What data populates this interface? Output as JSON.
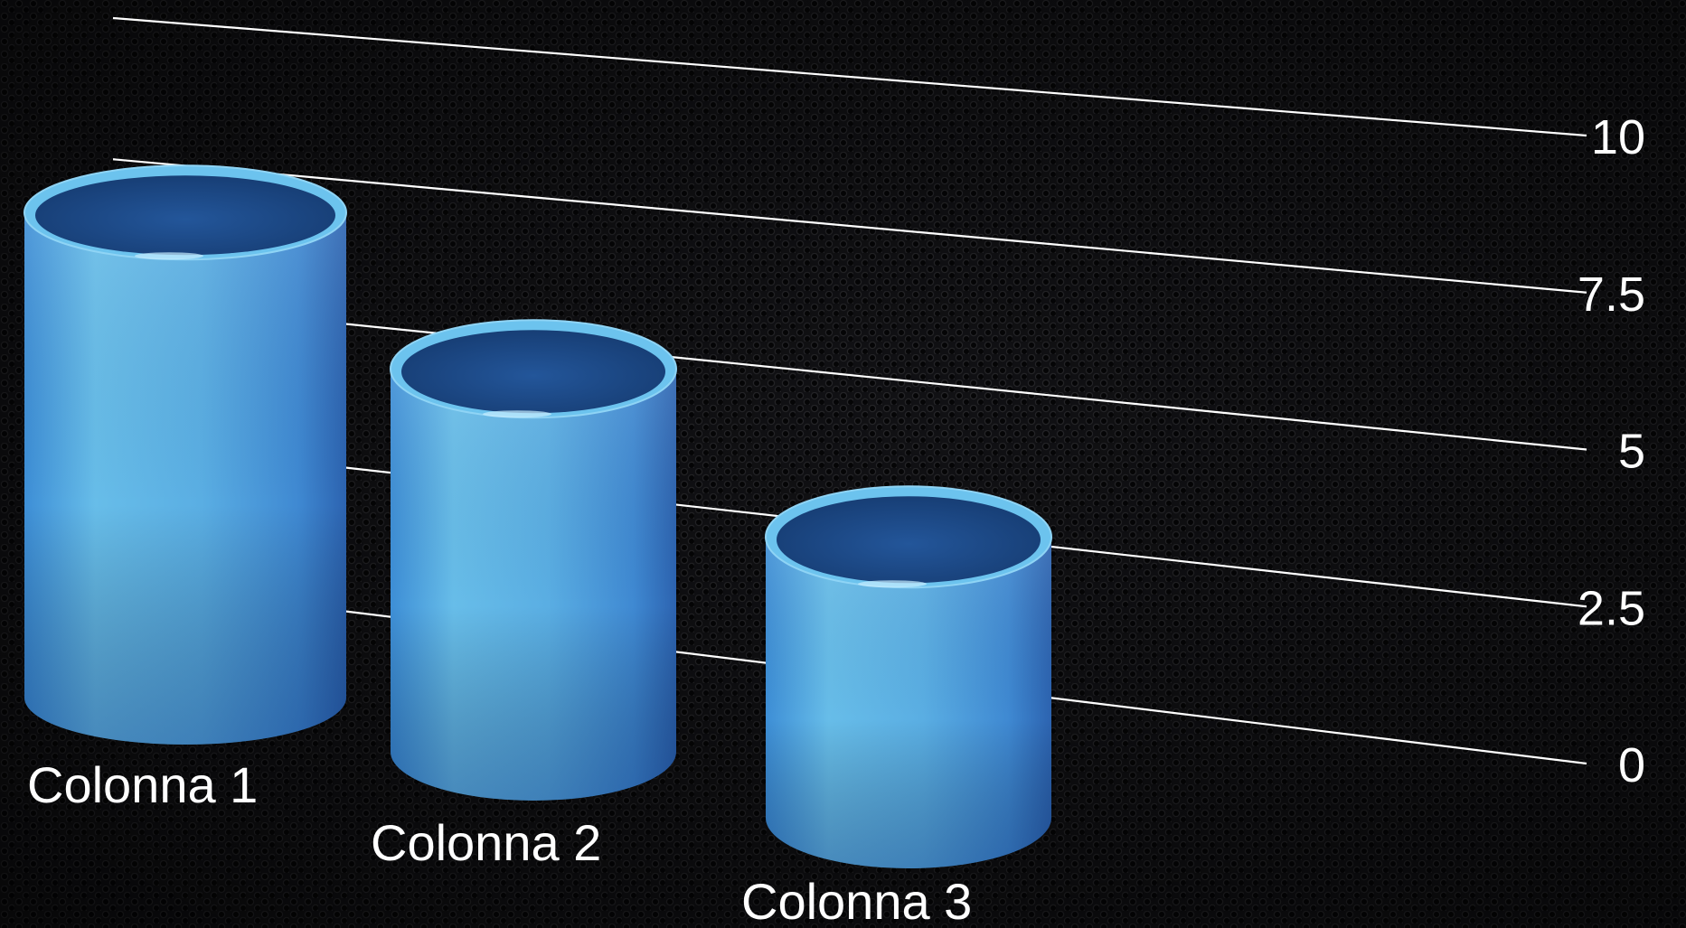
{
  "chart_data": {
    "type": "bar",
    "categories": [
      "Colonna 1",
      "Colonna 2",
      "Colonna 3"
    ],
    "values": [
      9.5,
      7.5,
      5.5
    ],
    "ylim": [
      0,
      10
    ],
    "yticks": [
      "0",
      "2.5",
      "5",
      "7.5",
      "10"
    ],
    "ytick_values": [
      0,
      2.5,
      5,
      7.5,
      10
    ],
    "bar_shape": "cylinder",
    "grid": true,
    "colors": {
      "bar_light": "#5bb8e8",
      "bar_dark": "#2f6fbf",
      "bar_top": "#1f4f8e",
      "gridline": "#ffffff",
      "background": "#0b0b0d"
    }
  }
}
